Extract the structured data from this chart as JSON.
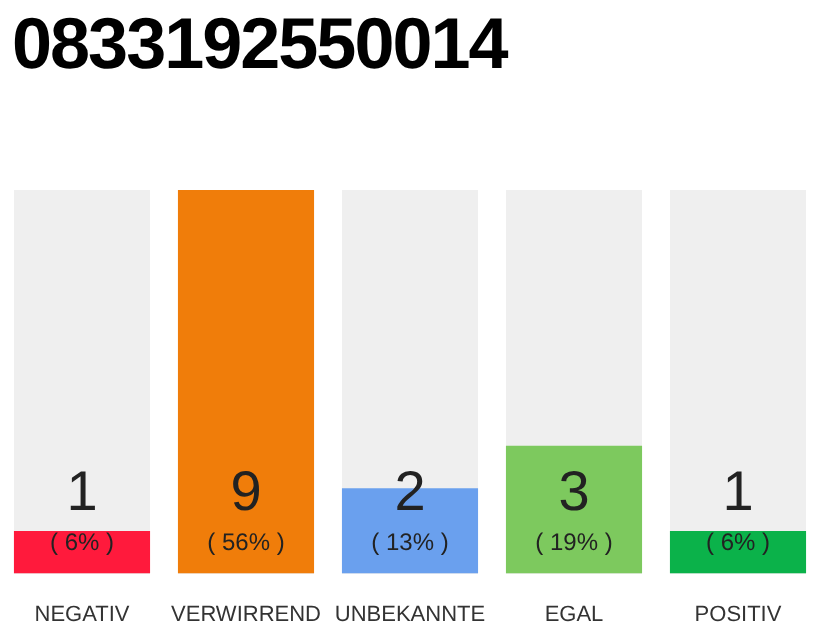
{
  "chart_data": {
    "type": "bar",
    "title": "0833192550014",
    "categories": [
      "NEGATIV",
      "VERWIRREND",
      "UNBEKANNTE",
      "EGAL",
      "POSITIV"
    ],
    "values": [
      1,
      9,
      2,
      3,
      1
    ],
    "colors": [
      "#ff1a3c",
      "#f07d0a",
      "#6aa0ee",
      "#7dc95e",
      "#0bb24a"
    ],
    "data_labels": true,
    "annotations": [
      "( 6% )",
      "( 56% )",
      "( 13% )",
      "( 19% )",
      "( 6% )"
    ],
    "grid": false,
    "legend": false
  }
}
